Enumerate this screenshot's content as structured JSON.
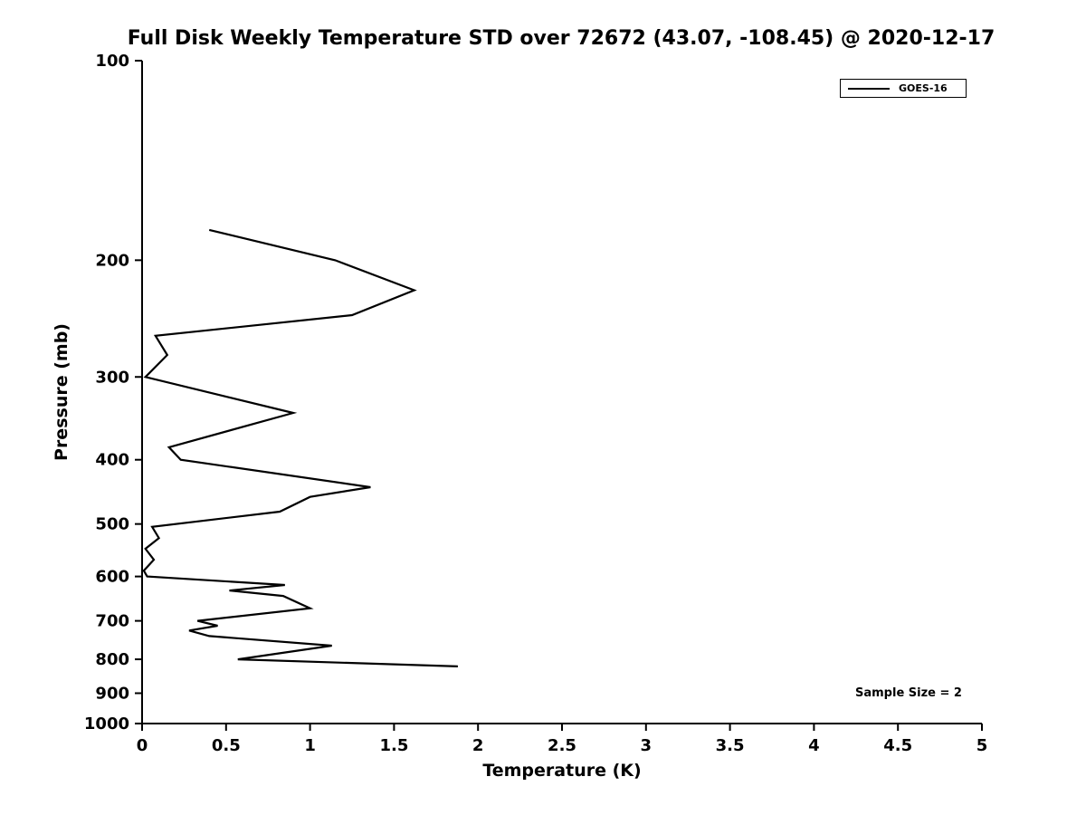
{
  "title": "Full Disk Weekly Temperature STD over 72672 (43.07, -108.45) @ 2020-12-17",
  "colors": {
    "line": "#000000",
    "axis": "#000000",
    "background": "#ffffff",
    "text": "#000000"
  },
  "legend": {
    "position": "upper right",
    "entries": [
      {
        "label": "GOES-16",
        "color": "#000000"
      }
    ]
  },
  "annotation": {
    "text": "Sample Size = 2"
  },
  "chart_data": {
    "type": "line",
    "title": "Full Disk Weekly Temperature STD over 72672 (43.07, -108.45) @ 2020-12-17",
    "xlabel": "Temperature (K)",
    "ylabel": "Pressure (mb)",
    "xlim": [
      0,
      5
    ],
    "ylim": [
      1000,
      100
    ],
    "yscale": "log",
    "y_axis_inverted": true,
    "grid": false,
    "x_ticks": [
      0,
      0.5,
      1,
      1.5,
      2,
      2.5,
      3,
      3.5,
      4,
      4.5,
      5
    ],
    "y_ticks": [
      100,
      200,
      300,
      400,
      500,
      600,
      700,
      800,
      900,
      1000
    ],
    "legend_entries": [
      "GOES-16"
    ],
    "annotation": "Sample Size = 2",
    "series": [
      {
        "name": "GOES-16",
        "color": "#000000",
        "pressure_mb": [
          180,
          200,
          222,
          242,
          260,
          278,
          300,
          340,
          383,
          400,
          440,
          455,
          479,
          505,
          525,
          545,
          566,
          588,
          600,
          618,
          630,
          642,
          670,
          700,
          712,
          724,
          738,
          763,
          800,
          820
        ],
        "temperature_k": [
          0.4,
          1.15,
          1.62,
          1.25,
          0.08,
          0.15,
          0.02,
          0.9,
          0.16,
          0.23,
          1.36,
          1.0,
          0.82,
          0.06,
          0.1,
          0.02,
          0.07,
          0.01,
          0.03,
          0.85,
          0.52,
          0.84,
          1.0,
          0.33,
          0.45,
          0.28,
          0.4,
          1.13,
          0.57,
          1.88
        ]
      }
    ]
  }
}
